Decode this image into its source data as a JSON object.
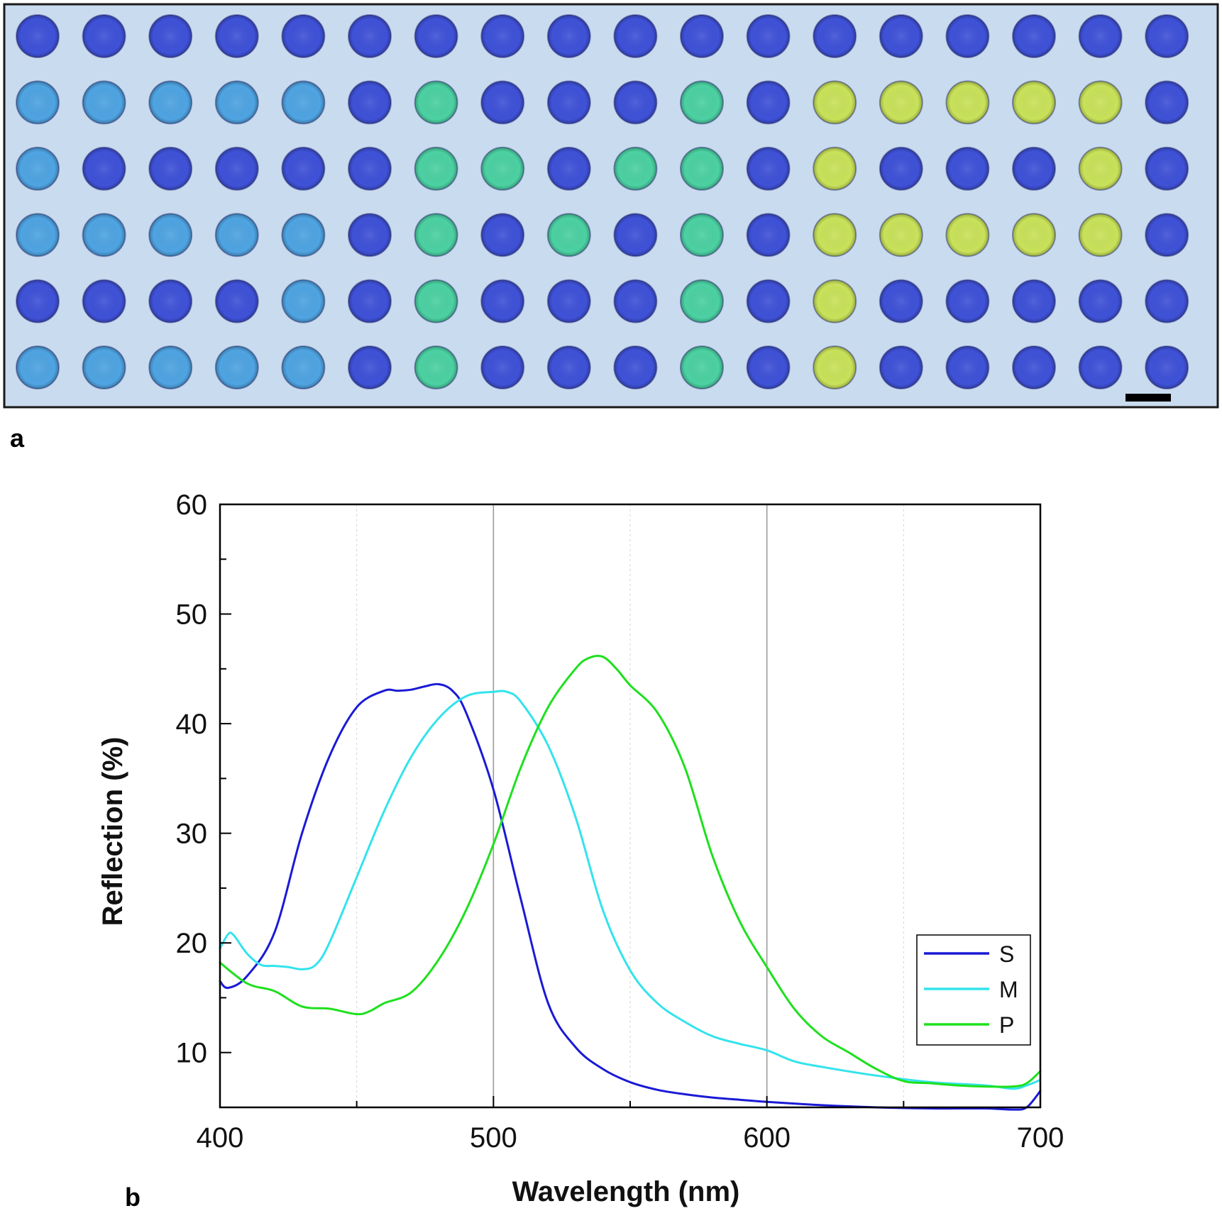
{
  "panel_a": {
    "label": "a",
    "description_colors": {
      "background": "#c9dbee",
      "blue": "#3f52d8",
      "light_blue": "#4fa4e2",
      "green": "#4cd1a3",
      "yellow": "#c9e25a"
    },
    "rows": [
      [
        "blue",
        "blue",
        "blue",
        "blue",
        "blue",
        "blue",
        "blue",
        "blue",
        "blue",
        "blue",
        "blue",
        "blue",
        "blue",
        "blue",
        "blue",
        "blue",
        "blue",
        "blue"
      ],
      [
        "light_blue",
        "light_blue",
        "light_blue",
        "light_blue",
        "light_blue",
        "blue",
        "green",
        "blue",
        "blue",
        "blue",
        "green",
        "blue",
        "yellow",
        "yellow",
        "yellow",
        "yellow",
        "yellow",
        "blue"
      ],
      [
        "light_blue",
        "blue",
        "blue",
        "blue",
        "blue",
        "blue",
        "green",
        "green",
        "blue",
        "green",
        "green",
        "blue",
        "yellow",
        "blue",
        "blue",
        "blue",
        "yellow",
        "blue"
      ],
      [
        "light_blue",
        "light_blue",
        "light_blue",
        "light_blue",
        "light_blue",
        "blue",
        "green",
        "blue",
        "green",
        "blue",
        "green",
        "blue",
        "yellow",
        "yellow",
        "yellow",
        "yellow",
        "yellow",
        "blue"
      ],
      [
        "blue",
        "blue",
        "blue",
        "blue",
        "light_blue",
        "blue",
        "green",
        "blue",
        "blue",
        "blue",
        "green",
        "blue",
        "yellow",
        "blue",
        "blue",
        "blue",
        "blue",
        "blue"
      ],
      [
        "light_blue",
        "light_blue",
        "light_blue",
        "light_blue",
        "light_blue",
        "blue",
        "green",
        "blue",
        "blue",
        "blue",
        "green",
        "blue",
        "yellow",
        "blue",
        "blue",
        "blue",
        "blue",
        "blue"
      ]
    ]
  },
  "panel_b": {
    "label": "b"
  },
  "chart_data": {
    "type": "line",
    "xlabel": "Wavelength (nm)",
    "ylabel": "Reflection (%)",
    "xlim": [
      400,
      700
    ],
    "ylim": [
      5,
      60
    ],
    "x_ticks": [
      400,
      500,
      600,
      700
    ],
    "y_ticks": [
      10,
      20,
      30,
      40,
      50,
      60
    ],
    "grid": "vertical",
    "legend_position": "bottom-right",
    "series": [
      {
        "name": "S",
        "color": "#1a1ad6",
        "x": [
          400,
          403,
          410,
          420,
          430,
          440,
          450,
          460,
          465,
          470,
          475,
          480,
          485,
          490,
          500,
          510,
          520,
          530,
          540,
          550,
          560,
          570,
          580,
          590,
          600,
          620,
          640,
          660,
          680,
          690,
          695,
          700
        ],
        "y": [
          16.5,
          15.9,
          17.0,
          21.0,
          30.0,
          37.0,
          41.5,
          43.0,
          43.0,
          43.1,
          43.4,
          43.6,
          43.0,
          41.0,
          34.0,
          24.0,
          14.5,
          10.5,
          8.5,
          7.3,
          6.6,
          6.2,
          5.9,
          5.7,
          5.5,
          5.2,
          5.0,
          4.9,
          4.9,
          4.8,
          5.0,
          6.5
        ]
      },
      {
        "name": "M",
        "color": "#33e3ec",
        "x": [
          400,
          403,
          405,
          410,
          415,
          420,
          425,
          430,
          435,
          440,
          450,
          460,
          470,
          480,
          490,
          500,
          505,
          510,
          520,
          530,
          540,
          550,
          560,
          570,
          580,
          590,
          600,
          610,
          620,
          640,
          660,
          680,
          690,
          695,
          700
        ],
        "y": [
          19.5,
          20.8,
          20.7,
          19.0,
          18.0,
          17.9,
          17.8,
          17.6,
          18.0,
          20.0,
          26.0,
          32.0,
          37.0,
          40.5,
          42.5,
          42.9,
          42.9,
          42.0,
          38.0,
          31.5,
          23.0,
          17.5,
          14.5,
          12.8,
          11.5,
          10.8,
          10.2,
          9.2,
          8.7,
          7.9,
          7.3,
          7.0,
          6.7,
          7.0,
          7.5
        ]
      },
      {
        "name": "P",
        "color": "#1ee01e",
        "x": [
          400,
          410,
          420,
          430,
          440,
          450,
          455,
          460,
          470,
          480,
          490,
          500,
          510,
          520,
          530,
          535,
          540,
          545,
          550,
          560,
          570,
          580,
          590,
          600,
          610,
          620,
          630,
          640,
          650,
          660,
          670,
          680,
          690,
          695,
          700
        ],
        "y": [
          18.2,
          16.3,
          15.6,
          14.2,
          14.0,
          13.5,
          13.8,
          14.5,
          15.5,
          18.5,
          23.0,
          29.0,
          36.0,
          41.5,
          45.0,
          46.0,
          46.1,
          45.0,
          43.5,
          41.0,
          36.0,
          28.0,
          22.0,
          17.8,
          14.0,
          11.5,
          10.0,
          8.5,
          7.4,
          7.2,
          7.0,
          6.9,
          6.9,
          7.2,
          8.3
        ]
      }
    ]
  }
}
